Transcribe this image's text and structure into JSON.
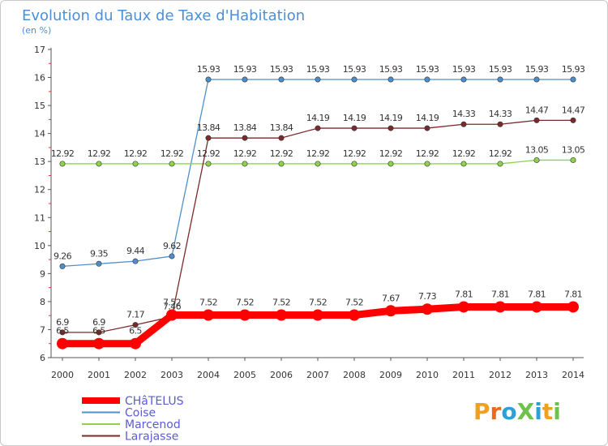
{
  "chart_data": {
    "type": "line",
    "title": "Evolution du Taux de Taxe d'Habitation",
    "subtitle": "(en %)",
    "xlabel": "",
    "ylabel": "",
    "ylim": [
      6,
      17
    ],
    "y_ticks": [
      "6",
      "7",
      "8",
      "9",
      "10",
      "11",
      "12",
      "13",
      "14",
      "15",
      "16",
      "17"
    ],
    "categories": [
      "2000",
      "2001",
      "2002",
      "2003",
      "2004",
      "2005",
      "2006",
      "2007",
      "2008",
      "2009",
      "2010",
      "2011",
      "2012",
      "2013",
      "2014"
    ],
    "grid": false,
    "legend_position": "bottom-left",
    "series": [
      {
        "name": "CHâTELUS",
        "color": "#ff0000",
        "legend_text_color": "#5b5bd6",
        "thick": true,
        "values": [
          6.5,
          6.5,
          6.5,
          7.52,
          7.52,
          7.52,
          7.52,
          7.52,
          7.52,
          7.67,
          7.73,
          7.81,
          7.81,
          7.81,
          7.81
        ],
        "labels": [
          "6.5",
          "6.5",
          "6.5",
          "7.52",
          "7.52",
          "7.52",
          "7.52",
          "7.52",
          "7.52",
          "7.67",
          "7.73",
          "7.81",
          "7.81",
          "7.81",
          "7.81"
        ]
      },
      {
        "name": "Coise",
        "color": "#4f8fc9",
        "legend_text_color": "#5b5bd6",
        "thick": false,
        "values": [
          9.26,
          9.35,
          9.44,
          9.62,
          15.93,
          15.93,
          15.93,
          15.93,
          15.93,
          15.93,
          15.93,
          15.93,
          15.93,
          15.93,
          15.93
        ],
        "labels": [
          "9.26",
          "9.35",
          "9.44",
          "9.62",
          "15.93",
          "15.93",
          "15.93",
          "15.93",
          "15.93",
          "15.93",
          "15.93",
          "15.93",
          "15.93",
          "15.93",
          "15.93"
        ]
      },
      {
        "name": "Marcenod",
        "color": "#8fd14f",
        "legend_text_color": "#5b5bd6",
        "thick": false,
        "values": [
          12.92,
          12.92,
          12.92,
          12.92,
          12.92,
          12.92,
          12.92,
          12.92,
          12.92,
          12.92,
          12.92,
          12.92,
          12.92,
          13.05,
          13.05
        ],
        "labels": [
          "12.92",
          "12.92",
          "12.92",
          "12.92",
          "12.92",
          "12.92",
          "12.92",
          "12.92",
          "12.92",
          "12.92",
          "12.92",
          "12.92",
          "12.92",
          "13.05",
          "13.05"
        ]
      },
      {
        "name": "Larajasse",
        "color": "#7a2a2a",
        "legend_text_color": "#5b5bd6",
        "thick": false,
        "values": [
          6.9,
          6.9,
          7.17,
          7.46,
          13.84,
          13.84,
          13.84,
          14.19,
          14.19,
          14.19,
          14.19,
          14.33,
          14.33,
          14.47,
          14.47
        ],
        "labels": [
          "6.9",
          "6.9",
          "7.17",
          "7.46",
          "13.84",
          "13.84",
          "13.84",
          "14.19",
          "14.19",
          "14.19",
          "14.19",
          "14.33",
          "14.33",
          "14.47",
          "14.47"
        ]
      }
    ]
  },
  "branding": {
    "logo_text": "ProXiti",
    "logo_letters": [
      "P",
      "r",
      "o",
      "X",
      "i",
      "t",
      "i"
    ],
    "logo_colors": [
      "#f0a020",
      "#e86a1a",
      "#2e9fd8",
      "#6cc24a",
      "#2e9fd8",
      "#f0a020",
      "#6cc24a"
    ]
  },
  "colors": {
    "title": "#4a90d9",
    "axis": "#555555",
    "tick_label": "#333333",
    "point_label": "#333333",
    "minor_tick": "#e03030"
  }
}
